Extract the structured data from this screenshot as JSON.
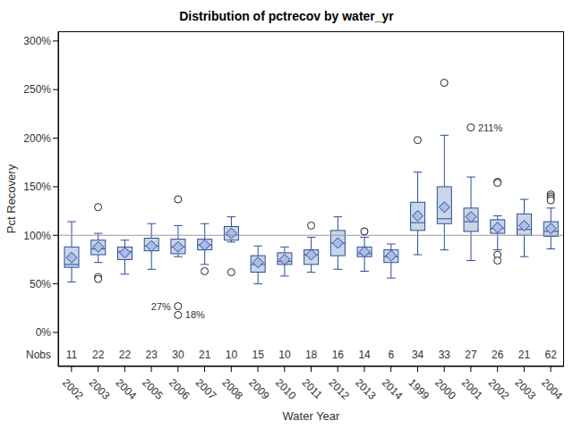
{
  "chart_data": {
    "type": "box",
    "title": "Distribution of pctrecov by water_yr",
    "x_label": "Water Year",
    "y_label": "Pct Recovery",
    "categories": [
      "2002",
      "2003",
      "2004",
      "2005",
      "2006",
      "2007",
      "2008",
      "2009",
      "2010",
      "2011",
      "2012",
      "2013",
      "2014",
      "1999",
      "2000",
      "2001",
      "2002",
      "2003",
      "2004"
    ],
    "whisker_low": [
      52,
      72,
      60,
      65,
      78,
      70,
      93,
      50,
      58,
      62,
      65,
      63,
      56,
      80,
      85,
      74,
      85,
      78,
      86
    ],
    "q1": [
      67,
      80,
      75,
      84,
      81,
      85,
      95,
      62,
      70,
      70,
      79,
      78,
      72,
      105,
      112,
      104,
      102,
      100,
      99
    ],
    "median": [
      70,
      86,
      83,
      89,
      88,
      90,
      100,
      70,
      73,
      80,
      92,
      81,
      78,
      113,
      117,
      114,
      107,
      106,
      104
    ],
    "q3": [
      88,
      95,
      88,
      97,
      96,
      96,
      109,
      79,
      82,
      85,
      105,
      88,
      85,
      134,
      150,
      128,
      116,
      122,
      114
    ],
    "whisker_high": [
      114,
      102,
      95,
      112,
      110,
      112,
      119,
      89,
      88,
      98,
      119,
      98,
      91,
      165,
      203,
      160,
      120,
      137,
      128
    ],
    "mean": [
      77,
      88,
      82,
      89,
      88,
      90,
      102,
      72,
      75,
      80,
      92,
      83,
      79,
      120,
      129,
      119,
      108,
      110,
      107
    ],
    "outliers": [
      [],
      [
        129,
        57,
        55
      ],
      [],
      [],
      [
        137,
        27,
        18
      ],
      [
        63
      ],
      [
        62
      ],
      [],
      [],
      [
        110
      ],
      [],
      [
        104
      ],
      [],
      [
        198
      ],
      [
        257
      ],
      [
        211
      ],
      [
        155,
        154,
        80,
        74
      ],
      [],
      [
        142,
        140,
        138,
        136
      ]
    ],
    "outlier_labels": [
      [],
      [
        null,
        null,
        null
      ],
      [],
      [],
      [
        null,
        "27%",
        "18%"
      ],
      [
        null
      ],
      [
        null
      ],
      [],
      [],
      [
        null
      ],
      [],
      [
        null
      ],
      [],
      [
        null
      ],
      [
        null
      ],
      [
        "211%"
      ],
      [
        null,
        null,
        null,
        null
      ],
      [],
      [
        null,
        null,
        null,
        null
      ]
    ],
    "nobs_label": "Nobs",
    "nobs": [
      11,
      22,
      22,
      23,
      30,
      21,
      10,
      15,
      10,
      18,
      16,
      14,
      6,
      34,
      33,
      27,
      26,
      21,
      62
    ],
    "reference_y": 100,
    "color": "#cad5e5",
    "ylim": [
      -35,
      310
    ],
    "yticks": [
      {
        "value": 0,
        "label": "0%"
      },
      {
        "value": 50,
        "label": "50%"
      },
      {
        "value": 100,
        "label": "100%"
      },
      {
        "value": 150,
        "label": "150%"
      },
      {
        "value": 200,
        "label": "200%"
      },
      {
        "value": 250,
        "label": "250%"
      },
      {
        "value": 300,
        "label": "300%"
      }
    ]
  }
}
